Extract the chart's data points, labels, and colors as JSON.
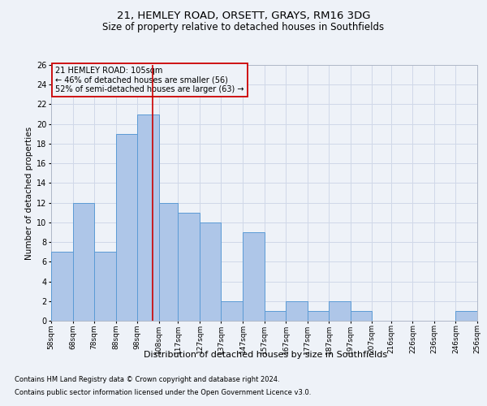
{
  "title1": "21, HEMLEY ROAD, ORSETT, GRAYS, RM16 3DG",
  "title2": "Size of property relative to detached houses in Southfields",
  "xlabel": "Distribution of detached houses by size in Southfields",
  "ylabel": "Number of detached properties",
  "footnote1": "Contains HM Land Registry data © Crown copyright and database right 2024.",
  "footnote2": "Contains public sector information licensed under the Open Government Licence v3.0.",
  "annotation_line1": "21 HEMLEY ROAD: 105sqm",
  "annotation_line2": "← 46% of detached houses are smaller (56)",
  "annotation_line3": "52% of semi-detached houses are larger (63) →",
  "bar_edges": [
    58,
    68,
    78,
    88,
    98,
    108,
    117,
    127,
    137,
    147,
    157,
    167,
    177,
    187,
    197,
    207,
    216,
    226,
    236,
    246,
    256
  ],
  "bar_heights": [
    7,
    12,
    7,
    19,
    21,
    12,
    11,
    10,
    2,
    9,
    1,
    2,
    1,
    2,
    1,
    0,
    0,
    0,
    0,
    1
  ],
  "bar_color": "#aec6e8",
  "bar_edge_color": "#5b9bd5",
  "grid_color": "#d0d8e8",
  "property_line_x": 105,
  "property_line_color": "#cc0000",
  "ylim": [
    0,
    26
  ],
  "yticks": [
    0,
    2,
    4,
    6,
    8,
    10,
    12,
    14,
    16,
    18,
    20,
    22,
    24,
    26
  ],
  "bg_color": "#eef2f8",
  "annotation_box_color": "#cc0000",
  "title1_fontsize": 9.5,
  "title2_fontsize": 8.5,
  "xlabel_fontsize": 8,
  "ylabel_fontsize": 7.5,
  "footnote_fontsize": 6,
  "tick_fontsize": 6.5,
  "ytick_fontsize": 7
}
